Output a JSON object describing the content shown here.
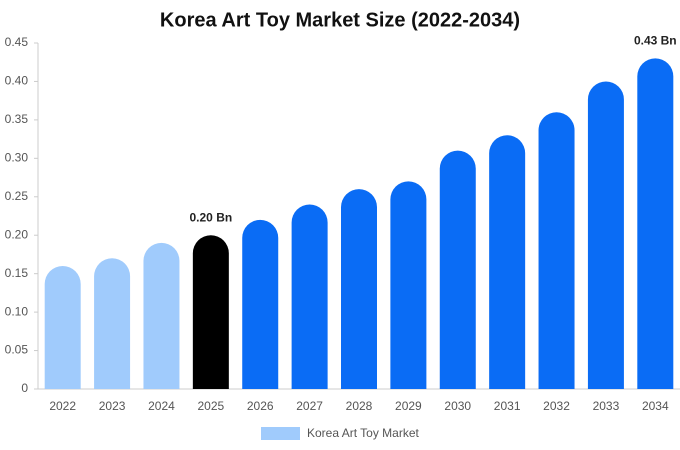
{
  "chart_data": {
    "type": "bar",
    "title": "Korea Art Toy Market Size (2022-2034)",
    "categories": [
      "2022",
      "2023",
      "2024",
      "2025",
      "2026",
      "2027",
      "2028",
      "2029",
      "2030",
      "2031",
      "2032",
      "2033",
      "2034"
    ],
    "series": [
      {
        "name": "Korea Art Toy Market",
        "color": "#a0cbfc",
        "values": [
          0.16,
          0.17,
          0.19,
          0.2,
          0.22,
          0.24,
          0.26,
          0.27,
          0.31,
          0.33,
          0.36,
          0.4,
          0.43
        ],
        "value_labels": [
          null,
          null,
          null,
          "0.20 Bn",
          null,
          null,
          null,
          null,
          null,
          null,
          null,
          null,
          "0.43 Bn"
        ],
        "bar_colors": [
          "#a0cbfc",
          "#a0cbfc",
          "#a0cbfc",
          "#000000",
          "#0a6cf5",
          "#0a6cf5",
          "#0a6cf5",
          "#0a6cf5",
          "#0a6cf5",
          "#0a6cf5",
          "#0a6cf5",
          "#0a6cf5",
          "#0a6cf5"
        ]
      }
    ],
    "ylim": [
      0,
      0.45
    ],
    "yticks": [
      0,
      {
        "value": 0.05,
        "label": "0.05"
      },
      {
        "value": 0.1,
        "label": "0.10"
      },
      {
        "value": 0.15,
        "label": "0.15"
      },
      {
        "value": 0.2,
        "label": "0.20"
      },
      {
        "value": 0.25,
        "label": "0.25"
      },
      {
        "value": 0.3,
        "label": "0.30"
      },
      {
        "value": 0.35,
        "label": "0.35"
      },
      {
        "value": 0.4,
        "label": "0.40"
      },
      {
        "value": 0.45,
        "label": "0.45"
      }
    ],
    "grid": false
  }
}
